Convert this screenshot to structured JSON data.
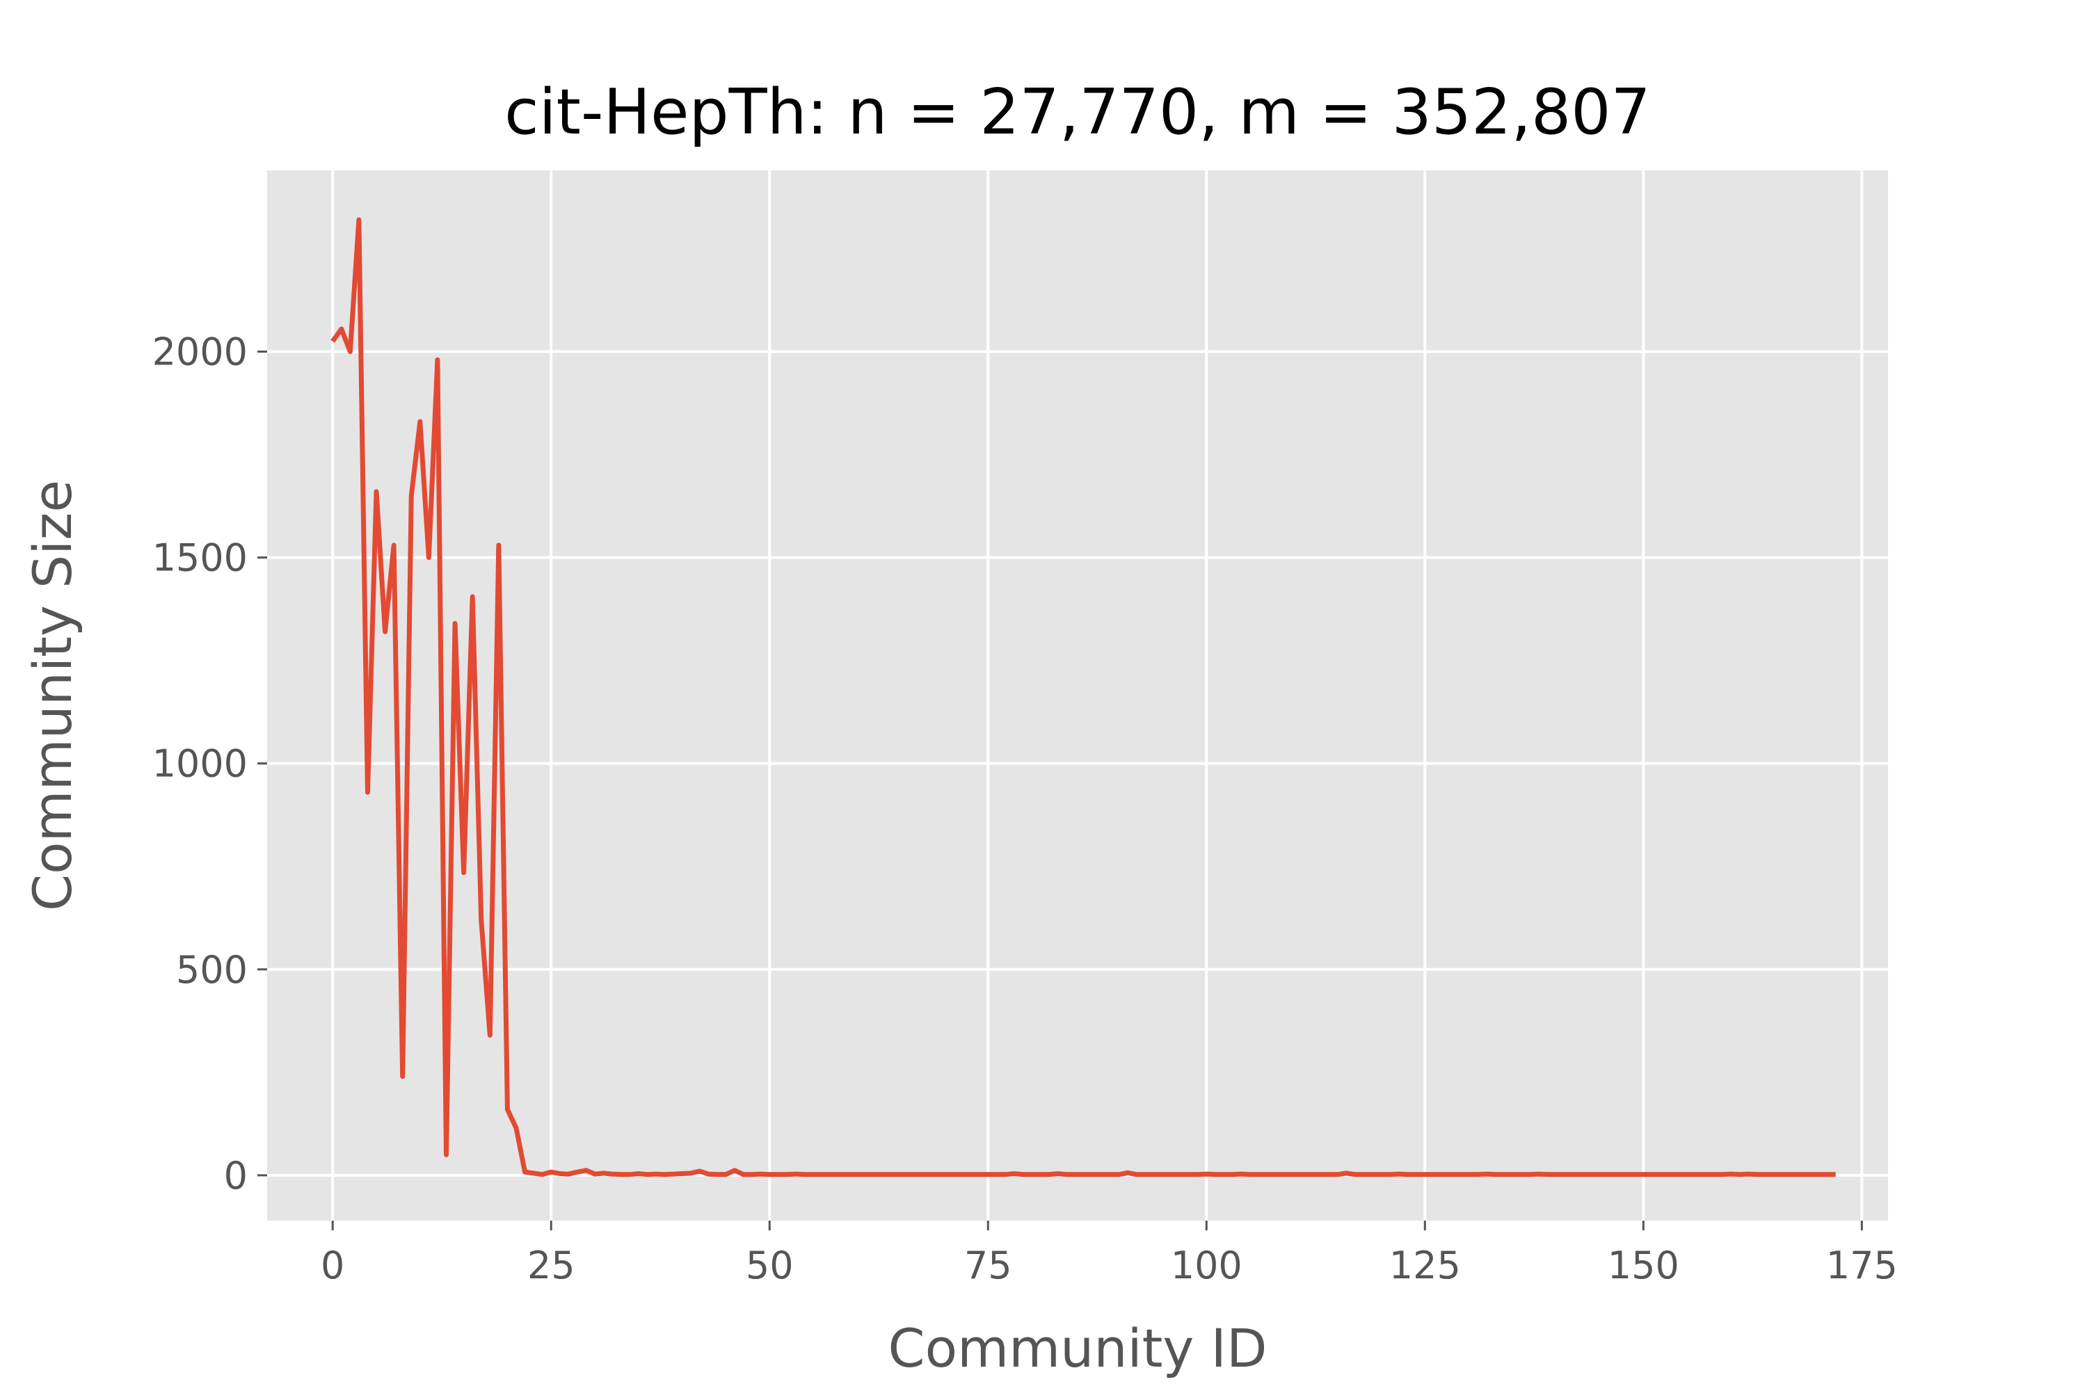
{
  "chart_data": {
    "type": "line",
    "title": "cit-HepTh: n = 27,770, m = 352,807",
    "xlabel": "Community ID",
    "ylabel": "Community Size",
    "xlim": [
      -7.5,
      178
    ],
    "ylim": [
      -110,
      2440
    ],
    "xticks": [
      0,
      25,
      50,
      75,
      100,
      125,
      150,
      175
    ],
    "yticks": [
      0,
      500,
      1000,
      1500,
      2000
    ],
    "grid": true,
    "legend": "none",
    "colors": {
      "line": "#E24A33",
      "plot_background": "#E5E5E5",
      "grid": "#FFFFFF"
    },
    "series": [
      {
        "values": [
          2025,
          2055,
          2000,
          2320,
          930,
          1660,
          1320,
          1530,
          240,
          1650,
          1830,
          1500,
          1980,
          50,
          1340,
          735,
          1405,
          620,
          340,
          1530,
          160,
          115,
          8,
          5,
          2,
          8,
          4,
          3,
          8,
          12,
          3,
          5,
          3,
          2,
          2,
          4,
          2,
          3,
          2,
          3,
          4,
          5,
          10,
          3,
          2,
          2,
          12,
          2,
          2,
          3,
          2,
          2,
          2,
          3,
          2,
          2,
          2,
          2,
          2,
          2,
          2,
          2,
          2,
          2,
          2,
          2,
          2,
          2,
          2,
          2,
          2,
          2,
          2,
          2,
          2,
          2,
          2,
          2,
          4,
          2,
          2,
          2,
          2,
          4,
          2,
          2,
          2,
          2,
          2,
          2,
          2,
          6,
          2,
          2,
          2,
          2,
          2,
          2,
          2,
          2,
          3,
          2,
          2,
          2,
          3,
          2,
          2,
          2,
          2,
          2,
          2,
          2,
          2,
          2,
          2,
          2,
          5,
          2,
          2,
          2,
          2,
          2,
          3,
          2,
          2,
          2,
          2,
          2,
          2,
          2,
          2,
          2,
          3,
          2,
          2,
          2,
          2,
          2,
          3,
          2,
          2,
          2,
          2,
          2,
          2,
          2,
          2,
          2,
          2,
          2,
          2,
          2,
          2,
          2,
          2,
          2,
          2,
          2,
          2,
          2,
          3,
          2,
          3,
          2,
          2,
          2,
          2,
          2,
          2,
          2,
          2,
          2,
          2
        ]
      }
    ]
  }
}
